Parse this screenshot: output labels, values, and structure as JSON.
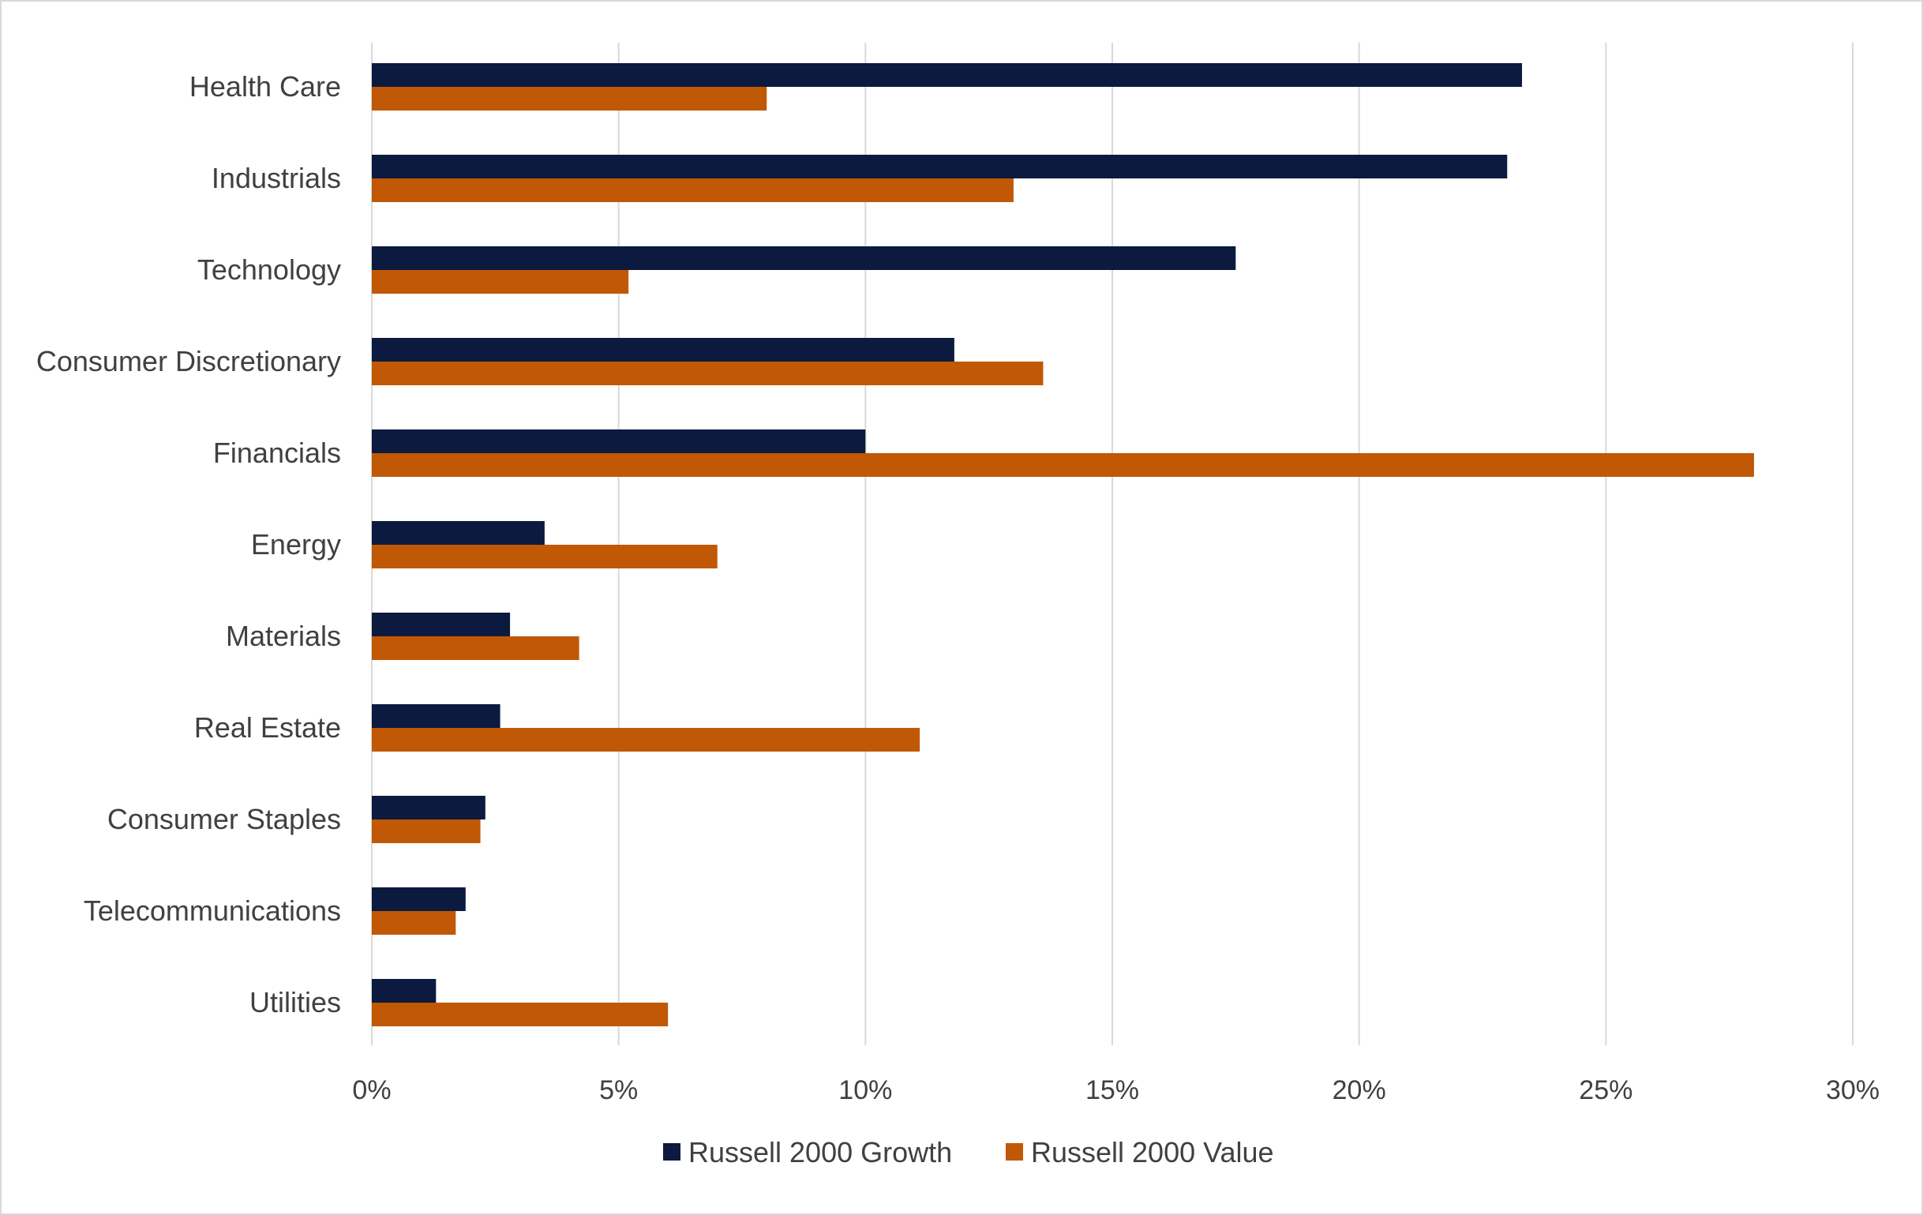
{
  "chart_data": {
    "type": "bar",
    "orientation": "horizontal",
    "title": "",
    "xlabel": "",
    "ylabel": "",
    "categories": [
      "Health Care",
      "Industrials",
      "Technology",
      "Consumer Discretionary",
      "Financials",
      "Energy",
      "Materials",
      "Real Estate",
      "Consumer Staples",
      "Telecommunications",
      "Utilities"
    ],
    "series": [
      {
        "name": "Russell 2000 Growth",
        "color": "#0b1a3e",
        "values": [
          23.3,
          23.0,
          17.5,
          11.8,
          10.0,
          3.5,
          2.8,
          2.6,
          2.3,
          1.9,
          1.3
        ]
      },
      {
        "name": "Russell 2000 Value",
        "color": "#c05805",
        "values": [
          8.0,
          13.0,
          5.2,
          13.6,
          28.0,
          7.0,
          4.2,
          11.1,
          2.2,
          1.7,
          6.0
        ]
      }
    ],
    "xlim": [
      0,
      30
    ],
    "xticks": [
      0,
      5,
      10,
      15,
      20,
      25,
      30
    ],
    "xtick_labels": [
      "0%",
      "5%",
      "10%",
      "15%",
      "20%",
      "25%",
      "30%"
    ],
    "grid": "vertical",
    "legend_position": "bottom"
  }
}
